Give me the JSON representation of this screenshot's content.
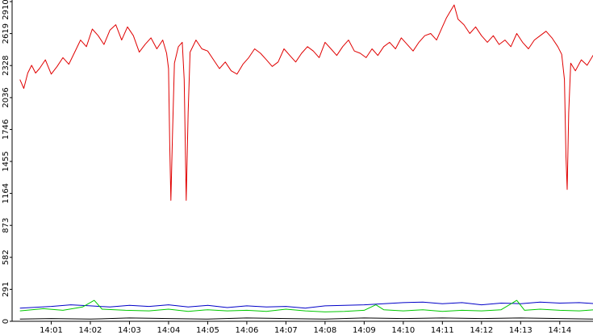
{
  "chart_data": {
    "type": "line",
    "title": "",
    "xlabel": "",
    "ylabel": "",
    "grid": false,
    "legend": "none",
    "ylim": [
      0,
      2910
    ],
    "yticks": [
      0,
      291,
      582,
      873,
      1164,
      1455,
      1746,
      2036,
      2328,
      2619,
      2910
    ],
    "xticks": [
      "14:01",
      "14:02",
      "14:03",
      "14:04",
      "14:05",
      "14:06",
      "14:07",
      "14:08",
      "14:09",
      "14:10",
      "14:11",
      "14:12",
      "14:13",
      "14:14"
    ],
    "x_range_minutes": [
      0.2,
      14.9
    ],
    "series": [
      {
        "color": "#e00000",
        "points": [
          [
            0.2,
            2200
          ],
          [
            0.3,
            2120
          ],
          [
            0.4,
            2260
          ],
          [
            0.5,
            2330
          ],
          [
            0.6,
            2260
          ],
          [
            0.7,
            2300
          ],
          [
            0.85,
            2380
          ],
          [
            1.0,
            2250
          ],
          [
            1.15,
            2320
          ],
          [
            1.3,
            2400
          ],
          [
            1.45,
            2340
          ],
          [
            1.6,
            2450
          ],
          [
            1.75,
            2560
          ],
          [
            1.9,
            2500
          ],
          [
            2.05,
            2660
          ],
          [
            2.2,
            2600
          ],
          [
            2.35,
            2520
          ],
          [
            2.5,
            2650
          ],
          [
            2.65,
            2700
          ],
          [
            2.8,
            2560
          ],
          [
            2.95,
            2680
          ],
          [
            3.1,
            2600
          ],
          [
            3.25,
            2450
          ],
          [
            3.4,
            2520
          ],
          [
            3.55,
            2580
          ],
          [
            3.7,
            2480
          ],
          [
            3.85,
            2560
          ],
          [
            3.95,
            2440
          ],
          [
            4.0,
            2300
          ],
          [
            4.03,
            1600
          ],
          [
            4.06,
            1100
          ],
          [
            4.1,
            1700
          ],
          [
            4.15,
            2350
          ],
          [
            4.25,
            2500
          ],
          [
            4.35,
            2540
          ],
          [
            4.4,
            2200
          ],
          [
            4.45,
            1100
          ],
          [
            4.5,
            1900
          ],
          [
            4.55,
            2450
          ],
          [
            4.7,
            2560
          ],
          [
            4.85,
            2480
          ],
          [
            5.0,
            2460
          ],
          [
            5.15,
            2380
          ],
          [
            5.3,
            2300
          ],
          [
            5.45,
            2360
          ],
          [
            5.6,
            2280
          ],
          [
            5.75,
            2250
          ],
          [
            5.9,
            2340
          ],
          [
            6.05,
            2400
          ],
          [
            6.2,
            2480
          ],
          [
            6.35,
            2440
          ],
          [
            6.5,
            2380
          ],
          [
            6.65,
            2320
          ],
          [
            6.8,
            2360
          ],
          [
            6.95,
            2480
          ],
          [
            7.1,
            2420
          ],
          [
            7.25,
            2360
          ],
          [
            7.4,
            2440
          ],
          [
            7.55,
            2500
          ],
          [
            7.7,
            2460
          ],
          [
            7.85,
            2400
          ],
          [
            8.0,
            2540
          ],
          [
            8.15,
            2480
          ],
          [
            8.3,
            2420
          ],
          [
            8.45,
            2500
          ],
          [
            8.6,
            2560
          ],
          [
            8.75,
            2460
          ],
          [
            8.9,
            2440
          ],
          [
            9.05,
            2400
          ],
          [
            9.2,
            2480
          ],
          [
            9.35,
            2420
          ],
          [
            9.5,
            2500
          ],
          [
            9.65,
            2540
          ],
          [
            9.8,
            2480
          ],
          [
            9.95,
            2580
          ],
          [
            10.1,
            2520
          ],
          [
            10.25,
            2460
          ],
          [
            10.4,
            2540
          ],
          [
            10.55,
            2600
          ],
          [
            10.7,
            2620
          ],
          [
            10.85,
            2560
          ],
          [
            11.0,
            2680
          ],
          [
            11.1,
            2760
          ],
          [
            11.2,
            2820
          ],
          [
            11.3,
            2880
          ],
          [
            11.4,
            2750
          ],
          [
            11.55,
            2700
          ],
          [
            11.7,
            2620
          ],
          [
            11.85,
            2680
          ],
          [
            12.0,
            2600
          ],
          [
            12.15,
            2540
          ],
          [
            12.3,
            2600
          ],
          [
            12.45,
            2520
          ],
          [
            12.6,
            2560
          ],
          [
            12.75,
            2500
          ],
          [
            12.9,
            2620
          ],
          [
            13.05,
            2540
          ],
          [
            13.2,
            2480
          ],
          [
            13.35,
            2560
          ],
          [
            13.5,
            2600
          ],
          [
            13.65,
            2640
          ],
          [
            13.8,
            2580
          ],
          [
            13.95,
            2500
          ],
          [
            14.05,
            2430
          ],
          [
            14.12,
            2200
          ],
          [
            14.16,
            1500
          ],
          [
            14.19,
            1200
          ],
          [
            14.23,
            1900
          ],
          [
            14.28,
            2350
          ],
          [
            14.4,
            2280
          ],
          [
            14.55,
            2380
          ],
          [
            14.7,
            2330
          ],
          [
            14.85,
            2420
          ],
          [
            14.9,
            2380
          ]
        ]
      },
      {
        "color": "#0000c8",
        "points": [
          [
            0.2,
            120
          ],
          [
            1.0,
            135
          ],
          [
            1.5,
            150
          ],
          [
            2.0,
            140
          ],
          [
            2.5,
            130
          ],
          [
            3.0,
            145
          ],
          [
            3.5,
            135
          ],
          [
            4.0,
            150
          ],
          [
            4.5,
            130
          ],
          [
            5.0,
            145
          ],
          [
            5.5,
            125
          ],
          [
            6.0,
            140
          ],
          [
            6.5,
            130
          ],
          [
            7.0,
            135
          ],
          [
            7.5,
            120
          ],
          [
            8.0,
            140
          ],
          [
            8.5,
            145
          ],
          [
            9.0,
            150
          ],
          [
            9.5,
            160
          ],
          [
            10.0,
            170
          ],
          [
            10.5,
            175
          ],
          [
            11.0,
            160
          ],
          [
            11.5,
            170
          ],
          [
            12.0,
            150
          ],
          [
            12.5,
            165
          ],
          [
            13.0,
            160
          ],
          [
            13.5,
            175
          ],
          [
            14.0,
            165
          ],
          [
            14.5,
            170
          ],
          [
            14.9,
            160
          ]
        ]
      },
      {
        "color": "#00c800",
        "points": [
          [
            0.2,
            95
          ],
          [
            0.8,
            115
          ],
          [
            1.3,
            100
          ],
          [
            1.8,
            130
          ],
          [
            2.1,
            190
          ],
          [
            2.3,
            110
          ],
          [
            2.9,
            100
          ],
          [
            3.5,
            95
          ],
          [
            4.0,
            110
          ],
          [
            4.5,
            90
          ],
          [
            5.0,
            105
          ],
          [
            5.5,
            95
          ],
          [
            6.0,
            100
          ],
          [
            6.5,
            90
          ],
          [
            7.0,
            110
          ],
          [
            7.5,
            95
          ],
          [
            8.0,
            85
          ],
          [
            8.5,
            90
          ],
          [
            9.0,
            100
          ],
          [
            9.3,
            150
          ],
          [
            9.5,
            105
          ],
          [
            10.0,
            95
          ],
          [
            10.5,
            105
          ],
          [
            11.0,
            90
          ],
          [
            11.5,
            100
          ],
          [
            12.0,
            95
          ],
          [
            12.5,
            105
          ],
          [
            12.9,
            190
          ],
          [
            13.1,
            100
          ],
          [
            13.5,
            110
          ],
          [
            14.0,
            100
          ],
          [
            14.5,
            95
          ],
          [
            14.9,
            105
          ]
        ]
      },
      {
        "color": "#000000",
        "points": [
          [
            0.2,
            20
          ],
          [
            1.0,
            25
          ],
          [
            2.0,
            20
          ],
          [
            3.0,
            30
          ],
          [
            4.0,
            25
          ],
          [
            5.0,
            20
          ],
          [
            6.0,
            30
          ],
          [
            7.0,
            25
          ],
          [
            8.0,
            20
          ],
          [
            9.0,
            30
          ],
          [
            10.0,
            25
          ],
          [
            11.0,
            30
          ],
          [
            12.0,
            25
          ],
          [
            13.0,
            30
          ],
          [
            14.0,
            25
          ],
          [
            14.9,
            20
          ]
        ]
      }
    ]
  }
}
